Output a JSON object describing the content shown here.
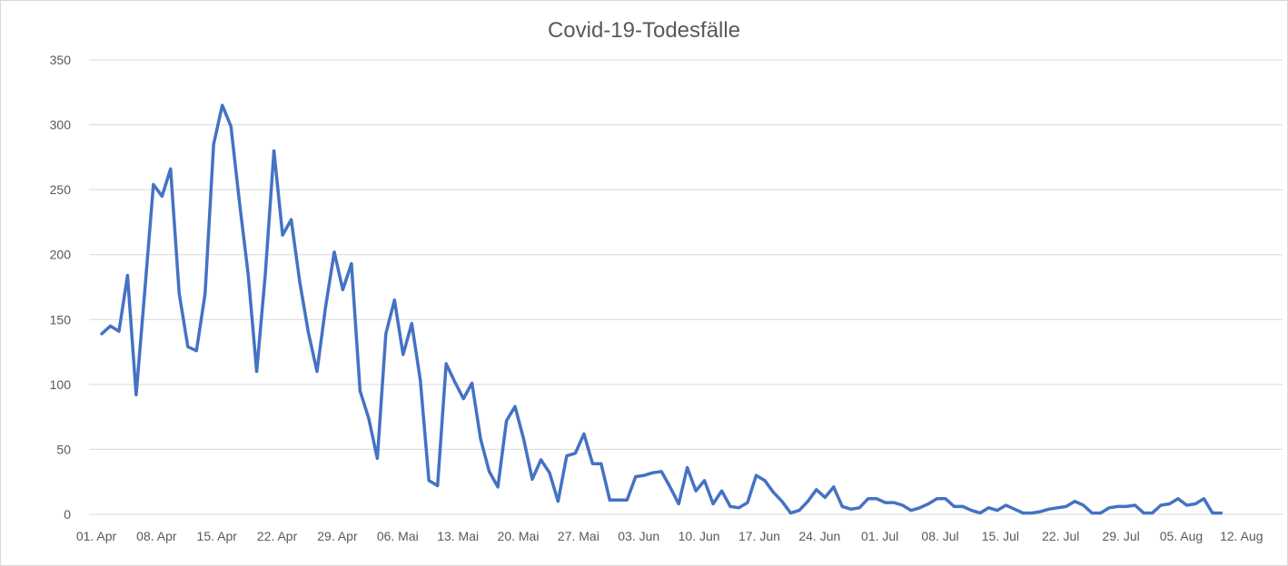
{
  "chart_data": {
    "type": "line",
    "title": "Covid-19-Todesfälle",
    "xlabel": "",
    "ylabel": "",
    "ylim": [
      0,
      350
    ],
    "yticks": [
      0,
      50,
      100,
      150,
      200,
      250,
      300,
      350
    ],
    "grid": true,
    "legend": "none",
    "x_tick_labels": [
      "01. Apr",
      "08. Apr",
      "15. Apr",
      "22. Apr",
      "29. Apr",
      "06. Mai",
      "13. Mai",
      "20. Mai",
      "27. Mai",
      "03. Jun",
      "10. Jun",
      "17. Jun",
      "24. Jun",
      "01. Jul",
      "08. Jul",
      "15. Jul",
      "22. Jul",
      "29. Jul",
      "05. Aug",
      "12. Aug"
    ],
    "x_start": "01. Apr",
    "series": [
      {
        "color": "#4472c4",
        "values": [
          139,
          145,
          141,
          184,
          92,
          172,
          254,
          245,
          266,
          170,
          129,
          126,
          170,
          285,
          315,
          299,
          240,
          185,
          110,
          185,
          280,
          215,
          227,
          179,
          140,
          110,
          160,
          202,
          173,
          193,
          95,
          74,
          43,
          139,
          165,
          123,
          147,
          103,
          26,
          22,
          116,
          102,
          89,
          101,
          58,
          33,
          21,
          72,
          83,
          58,
          27,
          42,
          32,
          10,
          45,
          47,
          62,
          39,
          39,
          11,
          11,
          11,
          29,
          30,
          32,
          33,
          21,
          8,
          36,
          18,
          26,
          8,
          18,
          6,
          5,
          9,
          30,
          26,
          17,
          10,
          1,
          3,
          10,
          19,
          13,
          21,
          6,
          4,
          5,
          12,
          12,
          9,
          9,
          7,
          3,
          5,
          8,
          12,
          12,
          6,
          6,
          3,
          1,
          5,
          3,
          7,
          4,
          1,
          1,
          2,
          4,
          5,
          6,
          10,
          7,
          1,
          1,
          5,
          6,
          6,
          7,
          1,
          1,
          7,
          8,
          12,
          7,
          8,
          12,
          1,
          1
        ]
      }
    ]
  }
}
